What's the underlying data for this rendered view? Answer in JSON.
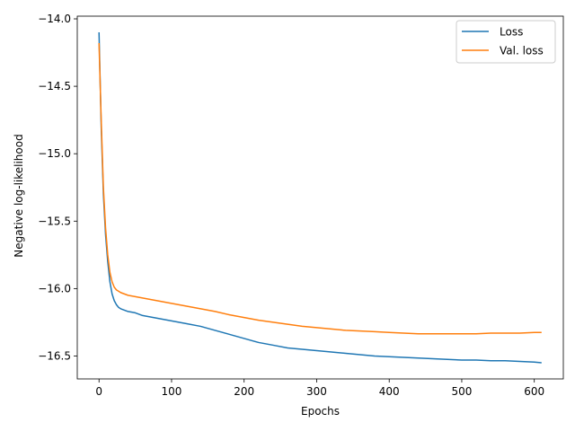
{
  "chart_data": {
    "type": "line",
    "title": "",
    "xlabel": "Epochs",
    "ylabel": "Negative log-likelihood",
    "xlim": [
      -30,
      640
    ],
    "ylim": [
      -16.67,
      -13.98
    ],
    "xticks": [
      0,
      100,
      200,
      300,
      400,
      500,
      600
    ],
    "xtick_labels": [
      "0",
      "100",
      "200",
      "300",
      "400",
      "500",
      "600"
    ],
    "yticks": [
      -14.0,
      -14.5,
      -15.0,
      -15.5,
      -16.0,
      -16.5
    ],
    "ytick_labels": [
      "−14.0",
      "−14.5",
      "−15.0",
      "−15.5",
      "−16.0",
      "−16.5"
    ],
    "grid": false,
    "legend": {
      "position": "top-right"
    },
    "series": [
      {
        "name": "Loss",
        "color": "#1f77b4",
        "x": [
          0,
          3,
          6,
          9,
          12,
          15,
          18,
          21,
          24,
          27,
          30,
          35,
          40,
          50,
          60,
          80,
          100,
          120,
          140,
          160,
          180,
          200,
          220,
          240,
          260,
          280,
          300,
          320,
          340,
          360,
          380,
          400,
          420,
          440,
          460,
          480,
          500,
          520,
          540,
          560,
          580,
          600,
          610
        ],
        "y": [
          -14.1,
          -14.8,
          -15.3,
          -15.6,
          -15.8,
          -15.95,
          -16.04,
          -16.09,
          -16.12,
          -16.14,
          -16.15,
          -16.16,
          -16.17,
          -16.18,
          -16.2,
          -16.22,
          -16.24,
          -16.26,
          -16.28,
          -16.31,
          -16.34,
          -16.37,
          -16.4,
          -16.42,
          -16.44,
          -16.45,
          -16.46,
          -16.47,
          -16.48,
          -16.49,
          -16.5,
          -16.505,
          -16.51,
          -16.515,
          -16.52,
          -16.525,
          -16.53,
          -16.53,
          -16.535,
          -16.535,
          -16.54,
          -16.545,
          -16.55
        ]
      },
      {
        "name": "Val. loss",
        "color": "#ff7f0e",
        "x": [
          0,
          3,
          6,
          9,
          12,
          15,
          18,
          21,
          24,
          27,
          30,
          35,
          40,
          50,
          60,
          80,
          100,
          120,
          140,
          160,
          180,
          200,
          220,
          240,
          260,
          280,
          300,
          320,
          340,
          360,
          380,
          400,
          420,
          440,
          460,
          480,
          500,
          520,
          540,
          560,
          580,
          600,
          610
        ],
        "y": [
          -14.18,
          -14.75,
          -15.25,
          -15.55,
          -15.75,
          -15.88,
          -15.95,
          -15.99,
          -16.01,
          -16.02,
          -16.03,
          -16.04,
          -16.05,
          -16.06,
          -16.07,
          -16.09,
          -16.11,
          -16.13,
          -16.15,
          -16.17,
          -16.195,
          -16.215,
          -16.235,
          -16.25,
          -16.265,
          -16.28,
          -16.29,
          -16.3,
          -16.31,
          -16.315,
          -16.32,
          -16.325,
          -16.33,
          -16.335,
          -16.335,
          -16.335,
          -16.335,
          -16.335,
          -16.33,
          -16.33,
          -16.33,
          -16.325,
          -16.325
        ]
      }
    ]
  }
}
